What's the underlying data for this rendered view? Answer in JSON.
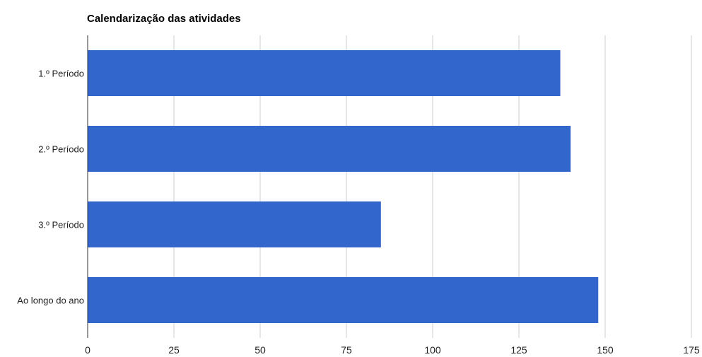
{
  "chart_data": {
    "type": "bar",
    "orientation": "horizontal",
    "title": "Calendarização das atividades",
    "categories": [
      "1.º Período",
      "2.º Período",
      "3.º Período",
      "Ao longo do ano"
    ],
    "values": [
      137,
      140,
      85,
      148
    ],
    "xlim": [
      0,
      175
    ],
    "x_ticks": [
      0,
      25,
      50,
      75,
      100,
      125,
      150,
      175
    ],
    "grid": true,
    "legend": "none",
    "bar_color": "#3366cc",
    "gridline_color": "#cccccc",
    "axis_color": "#333333"
  }
}
